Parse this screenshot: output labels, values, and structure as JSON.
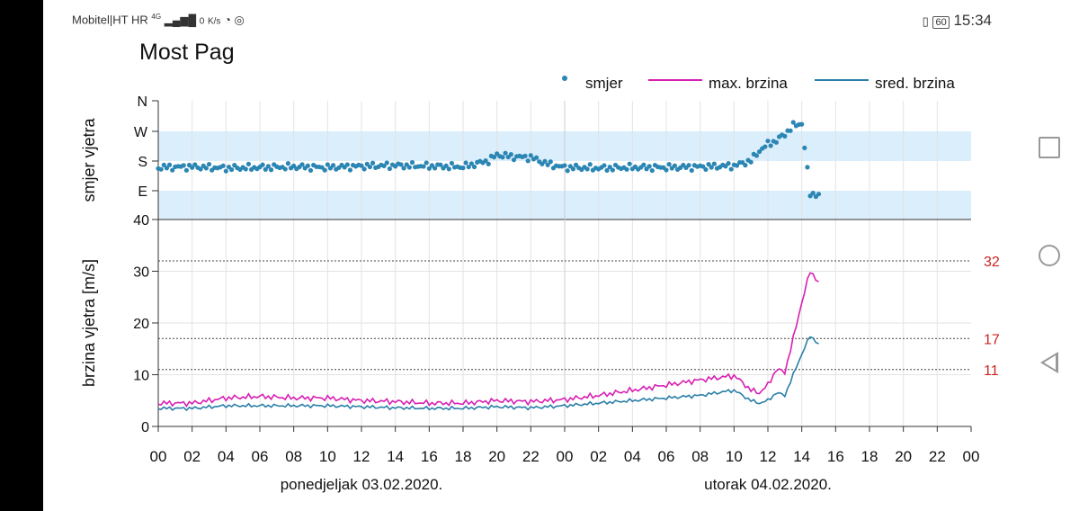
{
  "status_bar": {
    "carrier": "Mobitel|HT HR",
    "network": "4G",
    "speed_value": "0",
    "speed_unit": "K/s",
    "battery": "60",
    "time": "15:34"
  },
  "app": {
    "title": "Most Pag"
  },
  "legend": {
    "dir": "smjer",
    "max": "max. brzina",
    "avg": "sred. brzina"
  },
  "colors": {
    "max": "#d81fb3",
    "avg": "#2b7fa8",
    "dir": "#2b86b4",
    "band": "#dbeefb",
    "ref": "#cc2222"
  },
  "chart_data": {
    "type": "line",
    "title": "Most Pag",
    "direction_axis": {
      "label": "smjer vjetra",
      "ticks": [
        "N",
        "W",
        "S",
        "E"
      ]
    },
    "speed_axis": {
      "label": "brzina vjetra [m/s]",
      "ylim": [
        0,
        40
      ],
      "ticks": [
        0,
        10,
        20,
        30,
        40
      ]
    },
    "x_ticks": [
      "00",
      "02",
      "04",
      "06",
      "08",
      "10",
      "12",
      "14",
      "16",
      "18",
      "20",
      "22",
      "00",
      "02",
      "04",
      "06",
      "08",
      "10",
      "12",
      "14",
      "16",
      "18",
      "20",
      "22",
      "00"
    ],
    "day_labels": [
      "ponedjeljak 03.02.2020.",
      "utorak 04.02.2020."
    ],
    "reference_lines": [
      32,
      17,
      11
    ],
    "series": [
      {
        "name": "max. brzina",
        "x": [
          0,
          2,
          4,
          6,
          8,
          10,
          12,
          14,
          16,
          18,
          20,
          22,
          24,
          26,
          28,
          30,
          32,
          34,
          34.5,
          35,
          35.5,
          36,
          36.5,
          37,
          37.5,
          38,
          38.5,
          39
        ],
        "y": [
          4.5,
          4.5,
          5.5,
          5.8,
          5.5,
          5.5,
          5.0,
          4.8,
          4.5,
          4.5,
          5.0,
          4.8,
          5.2,
          6,
          7,
          8,
          9,
          9.8,
          8.5,
          7,
          6.5,
          8,
          11,
          10.5,
          17,
          24,
          30,
          28
        ]
      },
      {
        "name": "sred. brzina",
        "x": [
          0,
          2,
          4,
          6,
          8,
          10,
          12,
          14,
          16,
          18,
          20,
          22,
          24,
          26,
          28,
          30,
          32,
          34,
          34.5,
          35,
          35.5,
          36,
          36.5,
          37,
          37.5,
          38,
          38.5,
          39
        ],
        "y": [
          3.5,
          3.5,
          4,
          4,
          4,
          4,
          3.8,
          3.6,
          3.5,
          3.5,
          3.8,
          3.6,
          4,
          4.5,
          5,
          5.5,
          6,
          7,
          6,
          5,
          4.5,
          5,
          6.5,
          6,
          10,
          14,
          17.5,
          16
        ]
      },
      {
        "name": "smjer",
        "unit": "deg",
        "x": [
          0,
          2,
          4,
          6,
          8,
          10,
          12,
          14,
          16,
          18,
          19.5,
          20,
          21,
          22,
          23,
          24,
          26,
          28,
          30,
          32,
          34,
          35,
          35.5,
          36,
          36.5,
          37,
          37.5,
          38,
          38.5,
          39
        ],
        "y": [
          160,
          162,
          158,
          160,
          162,
          160,
          164,
          166,
          164,
          162,
          180,
          198,
          192,
          190,
          170,
          160,
          158,
          160,
          160,
          162,
          165,
          180,
          210,
          230,
          240,
          260,
          285,
          292,
          80,
          80
        ]
      }
    ]
  }
}
